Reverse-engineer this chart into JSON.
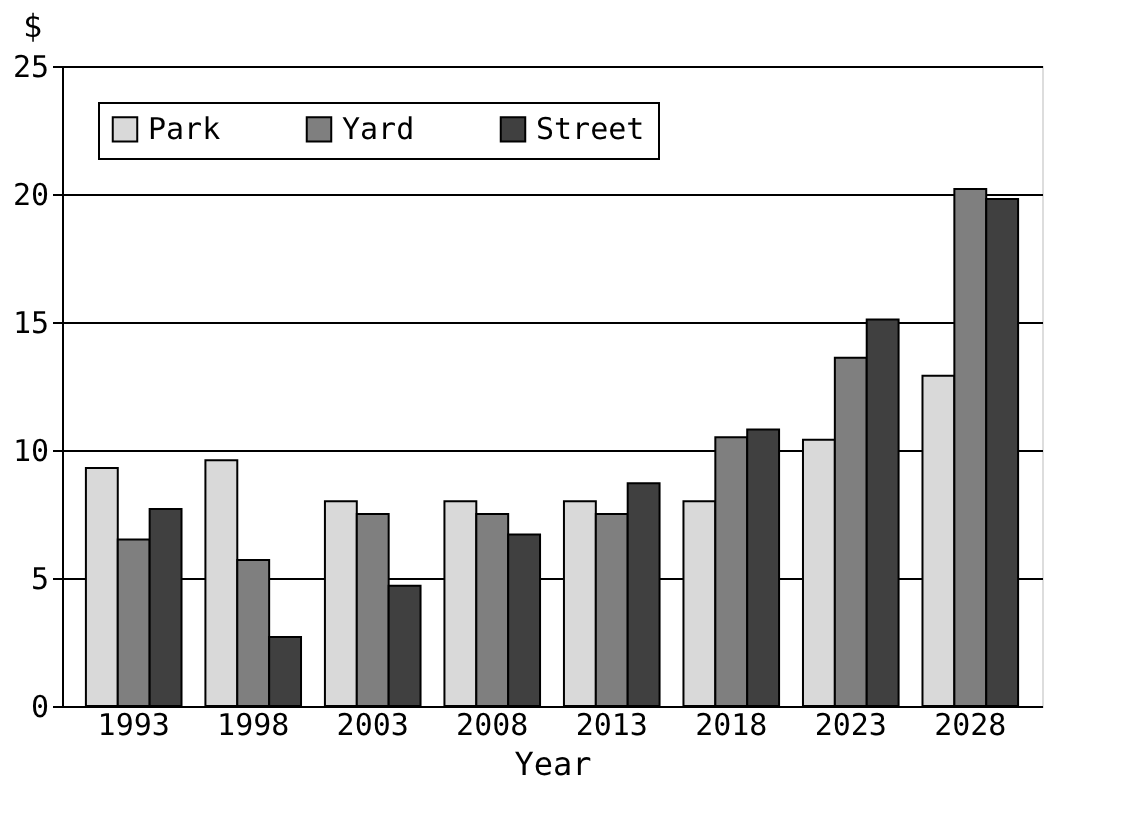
{
  "chart_data": {
    "type": "bar",
    "xlabel": "Year",
    "ylabel": "$",
    "categories": [
      "1993",
      "1998",
      "2003",
      "2008",
      "2013",
      "2018",
      "2023",
      "2028"
    ],
    "series": [
      {
        "name": "Park",
        "color": "#d9d9d9",
        "values": [
          9.3,
          9.6,
          8.0,
          8.0,
          8.0,
          8.0,
          10.4,
          12.9
        ]
      },
      {
        "name": "Yard",
        "color": "#7f7f7f",
        "values": [
          6.5,
          5.7,
          7.5,
          7.5,
          7.5,
          10.5,
          13.6,
          20.2
        ]
      },
      {
        "name": "Street",
        "color": "#404040",
        "values": [
          7.7,
          2.7,
          4.7,
          6.7,
          8.7,
          10.8,
          15.1,
          19.8
        ]
      }
    ],
    "ylim": [
      0,
      25
    ],
    "yticks": [
      0,
      5,
      10,
      15,
      20,
      25
    ],
    "grid": "y",
    "legend": "top left"
  }
}
